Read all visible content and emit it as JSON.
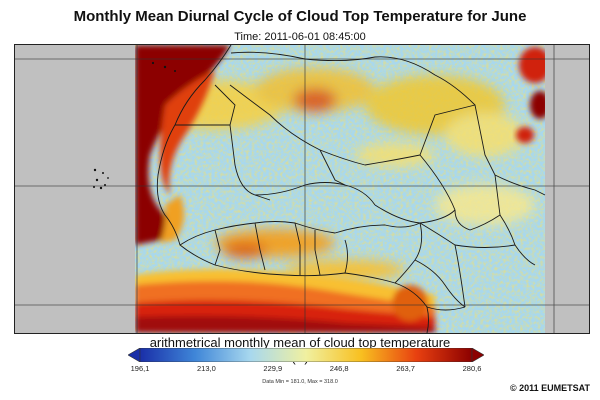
{
  "title": "Monthly Mean Diurnal Cycle of Cloud Top Temperature for June",
  "subtitle": "Time: 2011-06-01 08:45:00",
  "colorbar": {
    "label": "arithmetrical monthly mean of cloud top temperature (K)",
    "ticks": [
      "196,1",
      "213,0",
      "229,9",
      "246,8",
      "263,7",
      "280,6"
    ],
    "min": 196.1,
    "max": 280.6,
    "colors": [
      "#1a2fa8",
      "#3f86d8",
      "#a8d8ee",
      "#f0f0a0",
      "#f8c020",
      "#e84010",
      "#8c0000"
    ]
  },
  "stats": "Data Min = 181.0, Max = 318.0",
  "credit": "© 2011 EUMETSAT",
  "colors": {
    "no_data": "#c0c0c0",
    "cold_cloud": "#8c0000",
    "warm_surface": "#a8d8ee",
    "borders": "#1a1a1a"
  }
}
